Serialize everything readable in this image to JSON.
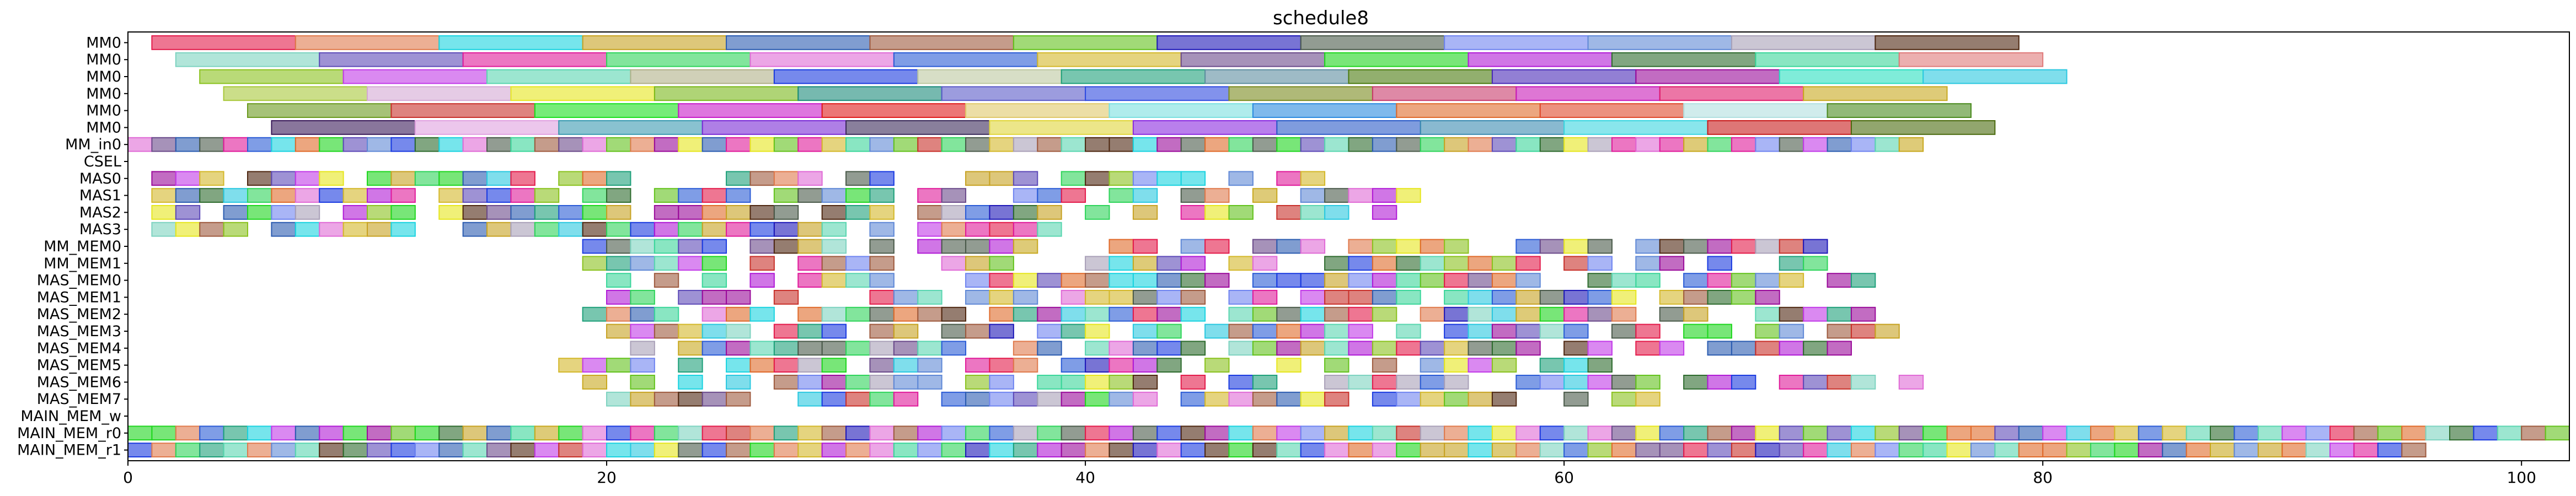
{
  "chart_data": {
    "type": "gantt",
    "title": "schedule8",
    "xlim": [
      0,
      102
    ],
    "x_ticks": [
      "0",
      "20",
      "40",
      "60",
      "80",
      "100"
    ],
    "x_tick_values": [
      0,
      20,
      40,
      60,
      80,
      100
    ],
    "rows": [
      "MM0",
      "MM0",
      "MM0",
      "MM0",
      "MM0",
      "MM0",
      "MM_in0",
      "CSEL",
      "MAS0",
      "MAS1",
      "MAS2",
      "MAS3",
      "MM_MEM0",
      "MM_MEM1",
      "MAS_MEM0",
      "MAS_MEM1",
      "MAS_MEM2",
      "MAS_MEM3",
      "MAS_MEM4",
      "MAS_MEM5",
      "MAS_MEM6",
      "MAS_MEM7",
      "MAIN_MEM_w",
      "MAIN_MEM_r0",
      "MAIN_MEM_r1"
    ],
    "bar_alpha": 0.6,
    "bars": [
      {
        "row": 0,
        "segs": [
          [
            1,
            6,
            "#e31a4a"
          ],
          [
            7,
            6,
            "#e07a4c"
          ],
          [
            13,
            6,
            "#1ad3e0"
          ],
          [
            19,
            6,
            "#c7a222"
          ],
          [
            25,
            6,
            "#2b5cb0"
          ],
          [
            31,
            6,
            "#9e5a3e"
          ],
          [
            37,
            6,
            "#63c21c"
          ],
          [
            43,
            6,
            "#1e18b8"
          ],
          [
            49,
            6,
            "#4a5a4a"
          ],
          [
            55,
            6,
            "#6f84f0"
          ],
          [
            61,
            6,
            "#5f88d6"
          ],
          [
            67,
            6,
            "#a9a0b8"
          ],
          [
            73,
            6,
            "#4e2710"
          ]
        ]
      },
      {
        "row": 1,
        "segs": [
          [
            2,
            6,
            "#7dd3c0"
          ],
          [
            8,
            6,
            "#5d4ab8"
          ],
          [
            14,
            6,
            "#e01a9a"
          ],
          [
            20,
            6,
            "#2ed45a"
          ],
          [
            26,
            6,
            "#e06ad6"
          ],
          [
            32,
            6,
            "#2a5bd6"
          ],
          [
            38,
            6,
            "#d4b82a"
          ],
          [
            44,
            6,
            "#6a4a8a"
          ],
          [
            50,
            6,
            "#1ed61e"
          ],
          [
            56,
            6,
            "#b01ad6"
          ],
          [
            62,
            6,
            "#2d6b2d"
          ],
          [
            68,
            6,
            "#3ad69a"
          ],
          [
            74,
            6,
            "#e07a7a"
          ]
        ]
      },
      {
        "row": 2,
        "segs": [
          [
            3,
            6,
            "#8ac21e"
          ],
          [
            9,
            6,
            "#c23ae8"
          ],
          [
            15,
            6,
            "#5ad6b0"
          ],
          [
            21,
            6,
            "#b0b088"
          ],
          [
            27,
            6,
            "#1a3ae0"
          ],
          [
            33,
            6,
            "#bcc8a0"
          ],
          [
            39,
            6,
            "#1ea07a"
          ],
          [
            45,
            6,
            "#5e8ea0"
          ],
          [
            51,
            6,
            "#4a7a0e"
          ],
          [
            57,
            6,
            "#4a2ab8"
          ],
          [
            63,
            6,
            "#9a0a9a"
          ],
          [
            69,
            6,
            "#2ae0c0"
          ],
          [
            75,
            6,
            "#2ac8e0"
          ]
        ]
      },
      {
        "row": 3,
        "segs": [
          [
            4,
            6,
            "#a8c83a"
          ],
          [
            10,
            6,
            "#d4a8d4"
          ],
          [
            16,
            6,
            "#e6e61e"
          ],
          [
            22,
            6,
            "#7ab81a"
          ],
          [
            28,
            6,
            "#1a8a7a"
          ],
          [
            34,
            6,
            "#5a5ac8"
          ],
          [
            40,
            6,
            "#2e4ae0"
          ],
          [
            46,
            6,
            "#7a8a1e"
          ],
          [
            52,
            6,
            "#c83a6a"
          ],
          [
            58,
            6,
            "#c81ab8"
          ],
          [
            64,
            6,
            "#e01a6a"
          ],
          [
            70,
            6,
            "#c8a81e"
          ]
        ]
      },
      {
        "row": 4,
        "segs": [
          [
            5,
            6,
            "#6a9a1e"
          ],
          [
            11,
            6,
            "#c8302a"
          ],
          [
            17,
            6,
            "#1ae01e"
          ],
          [
            23,
            6,
            "#c81ac8"
          ],
          [
            29,
            6,
            "#e01a1a"
          ],
          [
            35,
            6,
            "#e0c86a"
          ],
          [
            41,
            6,
            "#7ae0e0"
          ],
          [
            47,
            6,
            "#2a8ae0"
          ],
          [
            53,
            6,
            "#e06a2a"
          ],
          [
            59,
            6,
            "#e0482a"
          ],
          [
            65,
            6,
            "#b0e0e0"
          ],
          [
            71,
            6,
            "#4a8a1e"
          ]
        ]
      },
      {
        "row": 5,
        "segs": [
          [
            6,
            6,
            "#3a1a5a"
          ],
          [
            12,
            6,
            "#e0a0e0"
          ],
          [
            18,
            6,
            "#3a9ab0"
          ],
          [
            24,
            6,
            "#7a2ad6"
          ],
          [
            30,
            6,
            "#3a2a5a"
          ],
          [
            36,
            6,
            "#e0d63a"
          ],
          [
            42,
            6,
            "#8a2ae0"
          ],
          [
            48,
            6,
            "#2a5ac8"
          ],
          [
            54,
            6,
            "#3a8ab0"
          ],
          [
            60,
            6,
            "#3ad6e0"
          ],
          [
            66,
            6,
            "#c81a1a"
          ],
          [
            72,
            6,
            "#4a6a0e"
          ]
        ]
      }
    ],
    "small_rows": [
      {
        "row": 6,
        "start": 0,
        "end": 75,
        "step": 1
      },
      {
        "row": 8,
        "start": 1,
        "end": 50,
        "step": 1
      },
      {
        "row": 9,
        "start": 1,
        "end": 54,
        "step": 1
      },
      {
        "row": 10,
        "start": 1,
        "end": 54,
        "step": 1
      },
      {
        "row": 11,
        "start": 1,
        "end": 40,
        "step": 1
      },
      {
        "row": 12,
        "start": 19,
        "end": 71,
        "step": 1
      },
      {
        "row": 13,
        "start": 19,
        "end": 71,
        "step": 1
      },
      {
        "row": 14,
        "start": 20,
        "end": 73,
        "step": 1
      },
      {
        "row": 15,
        "start": 20,
        "end": 69,
        "step": 1
      },
      {
        "row": 16,
        "start": 18,
        "end": 73,
        "step": 1
      },
      {
        "row": 17,
        "start": 20,
        "end": 75,
        "step": 1
      },
      {
        "row": 18,
        "start": 20,
        "end": 72,
        "step": 1
      },
      {
        "row": 19,
        "start": 18,
        "end": 63,
        "step": 1
      },
      {
        "row": 20,
        "start": 19,
        "end": 75,
        "step": 1
      },
      {
        "row": 21,
        "start": 20,
        "end": 66,
        "step": 1
      },
      {
        "row": 23,
        "start": 0,
        "end": 102,
        "step": 1
      },
      {
        "row": 24,
        "start": 0,
        "end": 96,
        "step": 1
      }
    ],
    "xlabel": "",
    "ylabel": ""
  }
}
